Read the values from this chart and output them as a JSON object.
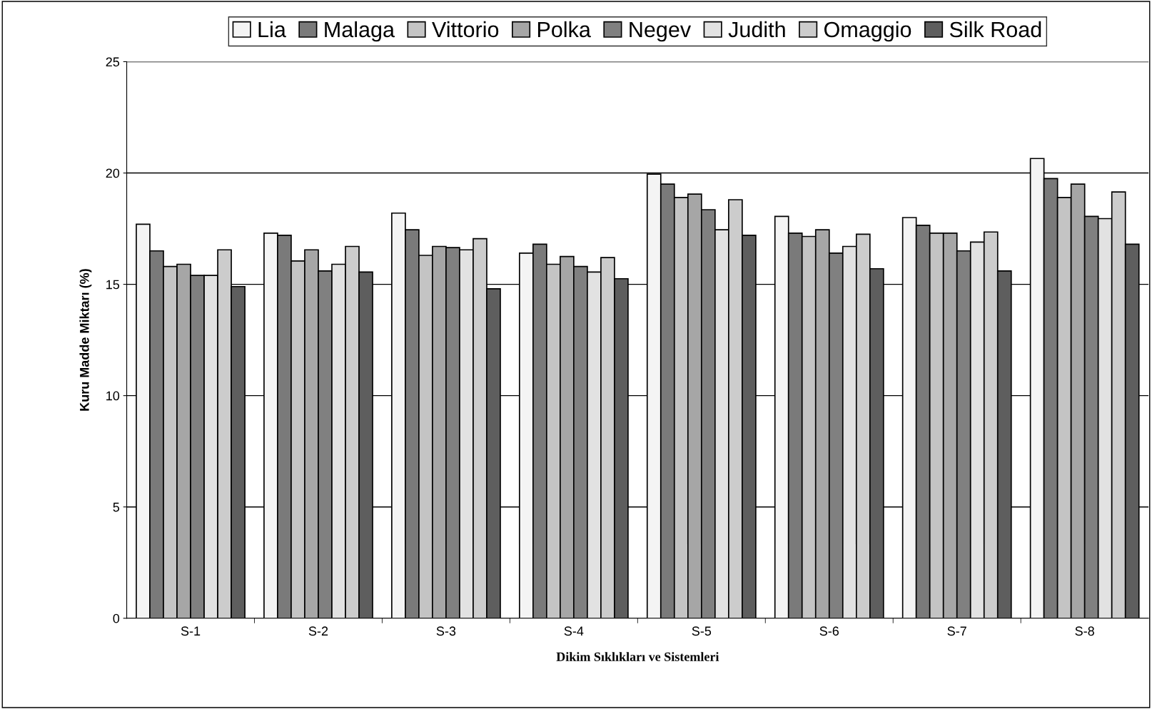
{
  "chart_data": {
    "type": "bar",
    "xlabel": "Dikim Sıklıkları ve Sistemleri",
    "ylabel": "Kuru Madde Miktarı (%)",
    "categories": [
      "S-1",
      "S-2",
      "S-3",
      "S-4",
      "S-5",
      "S-6",
      "S-7",
      "S-8"
    ],
    "series": [
      {
        "name": "Lia",
        "color": "#f4f4f4",
        "values": [
          17.7,
          17.3,
          18.2,
          16.4,
          19.95,
          18.05,
          18.0,
          20.65
        ]
      },
      {
        "name": "Malaga",
        "color": "#7a7a7a",
        "values": [
          16.5,
          17.2,
          17.45,
          16.8,
          19.5,
          17.3,
          17.65,
          19.75
        ]
      },
      {
        "name": "Vittorio",
        "color": "#c4c4c4",
        "values": [
          15.8,
          16.05,
          16.3,
          15.9,
          18.9,
          17.15,
          17.3,
          18.9
        ]
      },
      {
        "name": "Polka",
        "color": "#a6a6a6",
        "values": [
          15.9,
          16.55,
          16.7,
          16.25,
          19.05,
          17.45,
          17.3,
          19.5
        ]
      },
      {
        "name": "Negev",
        "color": "#808080",
        "values": [
          15.4,
          15.6,
          16.65,
          15.8,
          18.35,
          16.4,
          16.5,
          18.05
        ]
      },
      {
        "name": "Judith",
        "color": "#e2e2e2",
        "values": [
          15.4,
          15.9,
          16.55,
          15.55,
          17.45,
          16.7,
          16.9,
          17.95
        ]
      },
      {
        "name": "Omaggio",
        "color": "#cccccc",
        "values": [
          16.55,
          16.7,
          17.05,
          16.2,
          18.8,
          17.25,
          17.35,
          19.15
        ]
      },
      {
        "name": "Silk Road",
        "color": "#5e5e5e",
        "values": [
          14.9,
          15.55,
          14.8,
          15.25,
          17.2,
          15.7,
          15.6,
          16.8
        ]
      }
    ],
    "ylim": [
      0,
      25
    ],
    "yticks": [
      0,
      5,
      10,
      15,
      20,
      25
    ],
    "grid": "y",
    "legend": "top"
  }
}
